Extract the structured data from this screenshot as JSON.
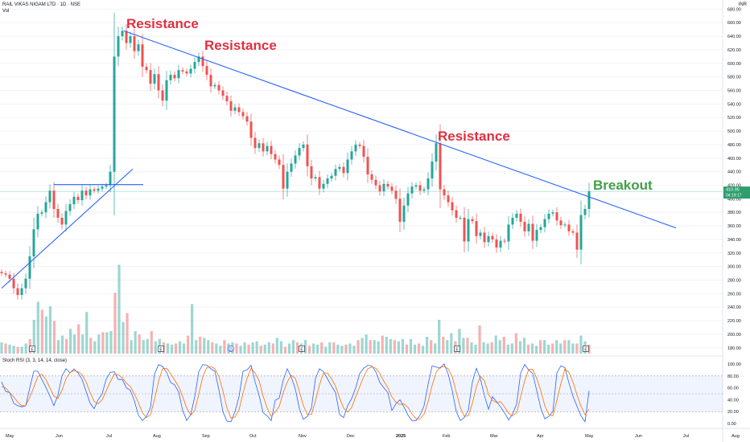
{
  "header": {
    "title": "RAIL VIKAS NIGAM LTD · 1D · NSE",
    "volume_label": "Vol",
    "currency": "INR"
  },
  "rsi": {
    "label": "Stoch RSI (3, 3, 14, 14, close)",
    "ticks": [
      "100.00",
      "80.00",
      "60.00",
      "40.00",
      "20.00",
      "0.00"
    ],
    "tick_values": [
      100,
      80,
      60,
      40,
      20,
      0
    ]
  },
  "price_badge": {
    "price": "410.95",
    "timer": "04:19:17"
  },
  "colors": {
    "up": "#26a69a",
    "down": "#ef5350",
    "trendline": "#2962ff",
    "resistance": "#e03040",
    "breakout": "#43a047",
    "badge": "#2e9e6e"
  },
  "chart_data": [
    {
      "type": "candlestick",
      "title": "RAIL VIKAS NIGAM LTD · 1D · NSE",
      "xlabel": "",
      "ylabel": "INR",
      "x_ticks": [
        "May",
        "Jun",
        "Jul",
        "Aug",
        "Sep",
        "Oct",
        "Nov",
        "Dec",
        "2025",
        "Feb",
        "Mar",
        "Apr",
        "May",
        "Jun",
        "Jul",
        "Aug"
      ],
      "y_ticks": [
        180,
        200,
        220,
        240,
        260,
        280,
        300,
        320,
        340,
        360,
        380,
        400,
        420,
        440,
        460,
        480,
        500,
        520,
        540,
        560,
        580,
        600,
        620,
        640,
        660,
        680
      ],
      "y_tick_labels": [
        "180.00",
        "200.00",
        "220.00",
        "240.00",
        "260.00",
        "280.00",
        "300.00",
        "320.00",
        "340.00",
        "360.00",
        "380.00",
        "400.00",
        "420.00",
        "440.00",
        "460.00",
        "480.00",
        "500.00",
        "520.00",
        "540.00",
        "560.00",
        "580.00",
        "600.00",
        "620.00",
        "640.00",
        "660.00",
        "680.00"
      ],
      "ylim": [
        175,
        684
      ],
      "last_price": 410.95,
      "series": [
        {
          "name": "Price",
          "points": [
            [
              0,
              290
            ],
            [
              5,
              288
            ],
            [
              10,
              282
            ],
            [
              15,
              268
            ],
            [
              20,
              258
            ],
            [
              25,
              268
            ],
            [
              30,
              282
            ],
            [
              35,
              315
            ],
            [
              40,
              355
            ],
            [
              45,
              378
            ],
            [
              50,
              380
            ],
            [
              55,
              395
            ],
            [
              60,
              412
            ],
            [
              65,
              385
            ],
            [
              70,
              372
            ],
            [
              75,
              362
            ],
            [
              80,
              382
            ],
            [
              85,
              392
            ],
            [
              90,
              403
            ],
            [
              95,
              398
            ],
            [
              100,
              412
            ],
            [
              105,
              405
            ],
            [
              110,
              414
            ],
            [
              115,
              412
            ],
            [
              120,
              415
            ],
            [
              125,
              418
            ],
            [
              130,
              420
            ],
            [
              135,
              440
            ],
            [
              140,
              610
            ],
            [
              145,
              640
            ],
            [
              150,
              648
            ],
            [
              155,
              630
            ],
            [
              160,
              640
            ],
            [
              165,
              618
            ],
            [
              170,
              628
            ],
            [
              175,
              595
            ],
            [
              180,
              590
            ],
            [
              185,
              570
            ],
            [
              190,
              584
            ],
            [
              195,
              560
            ],
            [
              200,
              545
            ],
            [
              205,
              575
            ],
            [
              210,
              583
            ],
            [
              215,
              578
            ],
            [
              220,
              590
            ],
            [
              225,
              588
            ],
            [
              230,
              585
            ],
            [
              235,
              592
            ],
            [
              240,
              602
            ],
            [
              245,
              610
            ],
            [
              250,
              596
            ],
            [
              255,
              583
            ],
            [
              260,
              566
            ],
            [
              265,
              568
            ],
            [
              270,
              560
            ],
            [
              275,
              552
            ],
            [
              280,
              544
            ],
            [
              285,
              530
            ],
            [
              290,
              535
            ],
            [
              295,
              528
            ],
            [
              300,
              522
            ],
            [
              305,
              514
            ],
            [
              310,
              490
            ],
            [
              315,
              475
            ],
            [
              320,
              482
            ],
            [
              325,
              470
            ],
            [
              330,
              478
            ],
            [
              335,
              466
            ],
            [
              340,
              458
            ],
            [
              345,
              450
            ],
            [
              350,
              415
            ],
            [
              355,
              440
            ],
            [
              360,
              452
            ],
            [
              365,
              464
            ],
            [
              370,
              475
            ],
            [
              375,
              480
            ],
            [
              380,
              448
            ],
            [
              385,
              430
            ],
            [
              390,
              432
            ],
            [
              395,
              415
            ],
            [
              400,
              422
            ],
            [
              405,
              430
            ],
            [
              410,
              434
            ],
            [
              415,
              444
            ],
            [
              420,
              447
            ],
            [
              425,
              438
            ],
            [
              430,
              458
            ],
            [
              435,
              470
            ],
            [
              440,
              480
            ],
            [
              445,
              478
            ],
            [
              450,
              462
            ],
            [
              455,
              436
            ],
            [
              460,
              428
            ],
            [
              465,
              420
            ],
            [
              470,
              411
            ],
            [
              475,
              422
            ],
            [
              480,
              418
            ],
            [
              485,
              412
            ],
            [
              490,
              400
            ],
            [
              495,
              366
            ],
            [
              500,
              390
            ],
            [
              505,
              408
            ],
            [
              510,
              418
            ],
            [
              515,
              420
            ],
            [
              520,
              412
            ],
            [
              525,
              414
            ],
            [
              530,
              430
            ],
            [
              535,
              455
            ],
            [
              540,
              482
            ],
            [
              545,
              414
            ],
            [
              550,
              405
            ],
            [
              555,
              395
            ],
            [
              560,
              383
            ],
            [
              565,
              372
            ],
            [
              570,
              372
            ],
            [
              575,
              337
            ],
            [
              580,
              370
            ],
            [
              585,
              367
            ],
            [
              590,
              345
            ],
            [
              595,
              350
            ],
            [
              600,
              336
            ],
            [
              605,
              345
            ],
            [
              610,
              340
            ],
            [
              615,
              328
            ],
            [
              620,
              338
            ],
            [
              625,
              337
            ],
            [
              630,
              362
            ],
            [
              635,
              372
            ],
            [
              640,
              378
            ],
            [
              645,
              366
            ],
            [
              650,
              352
            ],
            [
              655,
              363
            ],
            [
              660,
              338
            ],
            [
              665,
              354
            ],
            [
              670,
              358
            ],
            [
              675,
              370
            ],
            [
              680,
              378
            ],
            [
              685,
              380
            ],
            [
              690,
              368
            ],
            [
              695,
              361
            ],
            [
              700,
              362
            ],
            [
              705,
              352
            ],
            [
              710,
              350
            ],
            [
              715,
              325
            ],
            [
              720,
              376
            ],
            [
              725,
              385
            ],
            [
              730,
              411
            ]
          ]
        }
      ],
      "trendlines": [
        {
          "name": "Descending resistance",
          "from": [
            152,
            648
          ],
          "to": [
            838,
            357
          ]
        },
        {
          "name": "Rising support",
          "from": [
            0,
            268
          ],
          "to": [
            163,
            444
          ]
        },
        {
          "name": "Horizontal resistance",
          "from": [
            65,
            421
          ],
          "to": [
            176,
            421
          ]
        }
      ],
      "annotations": [
        {
          "text": "Resistance",
          "at": [
            155,
            657
          ]
        },
        {
          "text": "Resistance",
          "at": [
            252,
            625
          ]
        },
        {
          "text": "Resistance",
          "at": [
            542,
            491
          ]
        },
        {
          "text": "Breakout",
          "at": [
            735,
            418
          ]
        }
      ]
    },
    {
      "type": "bar",
      "title": "Vol",
      "values": [
        10,
        9,
        8,
        7,
        6,
        6,
        9,
        13,
        30,
        46,
        39,
        33,
        42,
        29,
        12,
        16,
        13,
        22,
        17,
        26,
        17,
        37,
        14,
        11,
        17,
        19,
        19,
        20,
        54,
        79,
        28,
        36,
        12,
        20,
        17,
        12,
        13,
        20,
        11,
        13,
        10,
        9,
        8,
        9,
        11,
        9,
        16,
        44,
        12,
        15,
        14,
        12,
        10,
        9,
        7,
        12,
        9,
        10,
        9,
        7,
        10,
        8,
        10,
        11,
        7,
        8,
        10,
        9,
        14,
        11,
        6,
        9,
        12,
        10,
        9,
        12,
        7,
        9,
        8,
        10,
        6,
        10,
        10,
        8,
        7,
        8,
        9,
        7,
        12,
        14,
        17,
        12,
        12,
        11,
        16,
        15,
        13,
        12,
        11,
        13,
        8,
        13,
        8,
        9,
        7,
        15,
        12,
        9,
        30,
        15,
        12,
        18,
        11,
        22,
        14,
        14,
        10,
        8,
        25,
        10,
        9,
        10,
        16,
        12,
        15,
        8,
        9,
        18,
        11,
        14,
        8,
        9,
        7,
        12,
        12,
        8,
        9,
        12,
        9,
        12,
        12,
        9,
        9,
        16,
        11,
        8
      ]
    },
    {
      "type": "line",
      "title": "Stoch RSI (3, 3, 14, 14, close)",
      "ylim": [
        0,
        100
      ],
      "y_ticks": [
        100,
        80,
        60,
        40,
        20,
        0
      ],
      "series": [
        {
          "name": "%K",
          "values": [
            70,
            54,
            52,
            34,
            30,
            28,
            30,
            60,
            88,
            88,
            74,
            61,
            46,
            30,
            48,
            80,
            92,
            85,
            92,
            85,
            74,
            54,
            34,
            25,
            40,
            50,
            75,
            86,
            87,
            74,
            74,
            60,
            56,
            38,
            14,
            5,
            12,
            27,
            83,
            99,
            96,
            86,
            69,
            65,
            53,
            22,
            5,
            15,
            45,
            87,
            99,
            98,
            92,
            88,
            57,
            20,
            4,
            3,
            20,
            45,
            88,
            90,
            98,
            70,
            47,
            18,
            13,
            5,
            39,
            43,
            73,
            92,
            78,
            58,
            25,
            7,
            12,
            26,
            76,
            92,
            87,
            75,
            63,
            52,
            15,
            10,
            30,
            42,
            60,
            84,
            93,
            98,
            97,
            87,
            69,
            60,
            52,
            22,
            33,
            40,
            28,
            14,
            5,
            5,
            14,
            30,
            66,
            97,
            95,
            93,
            100,
            83,
            55,
            20,
            5,
            10,
            23,
            70,
            93,
            75,
            47,
            24,
            45,
            37,
            28,
            18,
            6,
            16,
            33,
            85,
            99,
            90,
            84,
            55,
            26,
            8,
            12,
            20,
            85,
            97,
            94,
            68,
            46,
            29,
            13,
            3,
            55
          ]
        },
        {
          "name": "%D",
          "values": [
            62,
            60,
            52,
            45,
            36,
            30,
            30,
            44,
            61,
            79,
            83,
            74,
            60,
            46,
            42,
            56,
            75,
            86,
            89,
            87,
            82,
            70,
            52,
            37,
            33,
            40,
            55,
            70,
            83,
            82,
            77,
            68,
            62,
            50,
            35,
            18,
            10,
            15,
            40,
            71,
            92,
            93,
            84,
            73,
            62,
            45,
            26,
            14,
            22,
            49,
            79,
            94,
            96,
            92,
            79,
            55,
            26,
            9,
            11,
            23,
            51,
            76,
            93,
            85,
            72,
            46,
            26,
            12,
            19,
            29,
            52,
            70,
            81,
            76,
            54,
            30,
            15,
            15,
            38,
            65,
            85,
            85,
            75,
            63,
            43,
            26,
            19,
            27,
            45,
            62,
            79,
            92,
            95,
            93,
            84,
            71,
            60,
            45,
            36,
            32,
            33,
            27,
            16,
            8,
            8,
            16,
            37,
            64,
            86,
            95,
            96,
            92,
            79,
            53,
            27,
            12,
            13,
            34,
            62,
            79,
            72,
            49,
            39,
            35,
            37,
            28,
            17,
            13,
            18,
            45,
            72,
            91,
            91,
            76,
            55,
            30,
            15,
            13,
            39,
            67,
            92,
            86,
            70,
            48,
            29,
            15,
            24
          ]
        }
      ]
    }
  ]
}
